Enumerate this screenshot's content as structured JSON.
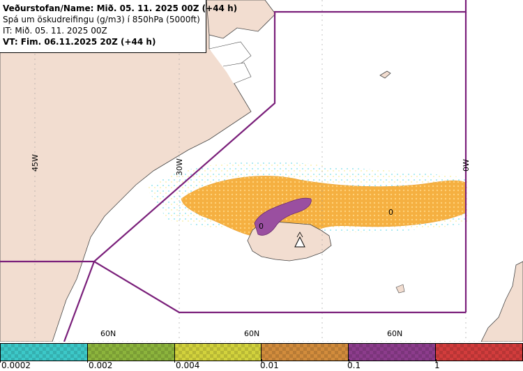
{
  "header": {
    "line1": "Veðurstofan/Name: Mið. 05. 11. 2025 00Z (+44 h)",
    "line2": "Spá um öskudreifingu (g/m3) í 850hPa (5000ft)",
    "line3": "IT: Mið. 05. 11. 2025 00Z",
    "line4": "VT: Fim. 06.11.2025 20Z (+44 h)"
  },
  "map": {
    "longitude_labels": [
      "45W",
      "30W",
      "0W"
    ],
    "latitude_labels": [
      "60N",
      "60N",
      "60N"
    ],
    "contour_labels": [
      "0",
      "0"
    ]
  },
  "legend": {
    "tick_labels": [
      "0.0002",
      "0.002",
      "0.004",
      "0.01",
      "0.1",
      "1"
    ],
    "colors": [
      "#3cc8c8",
      "#8cb43c",
      "#d2d23c",
      "#d28c3c",
      "#8c3c8c",
      "#d23c3c"
    ],
    "icon": "volcano-icon"
  }
}
